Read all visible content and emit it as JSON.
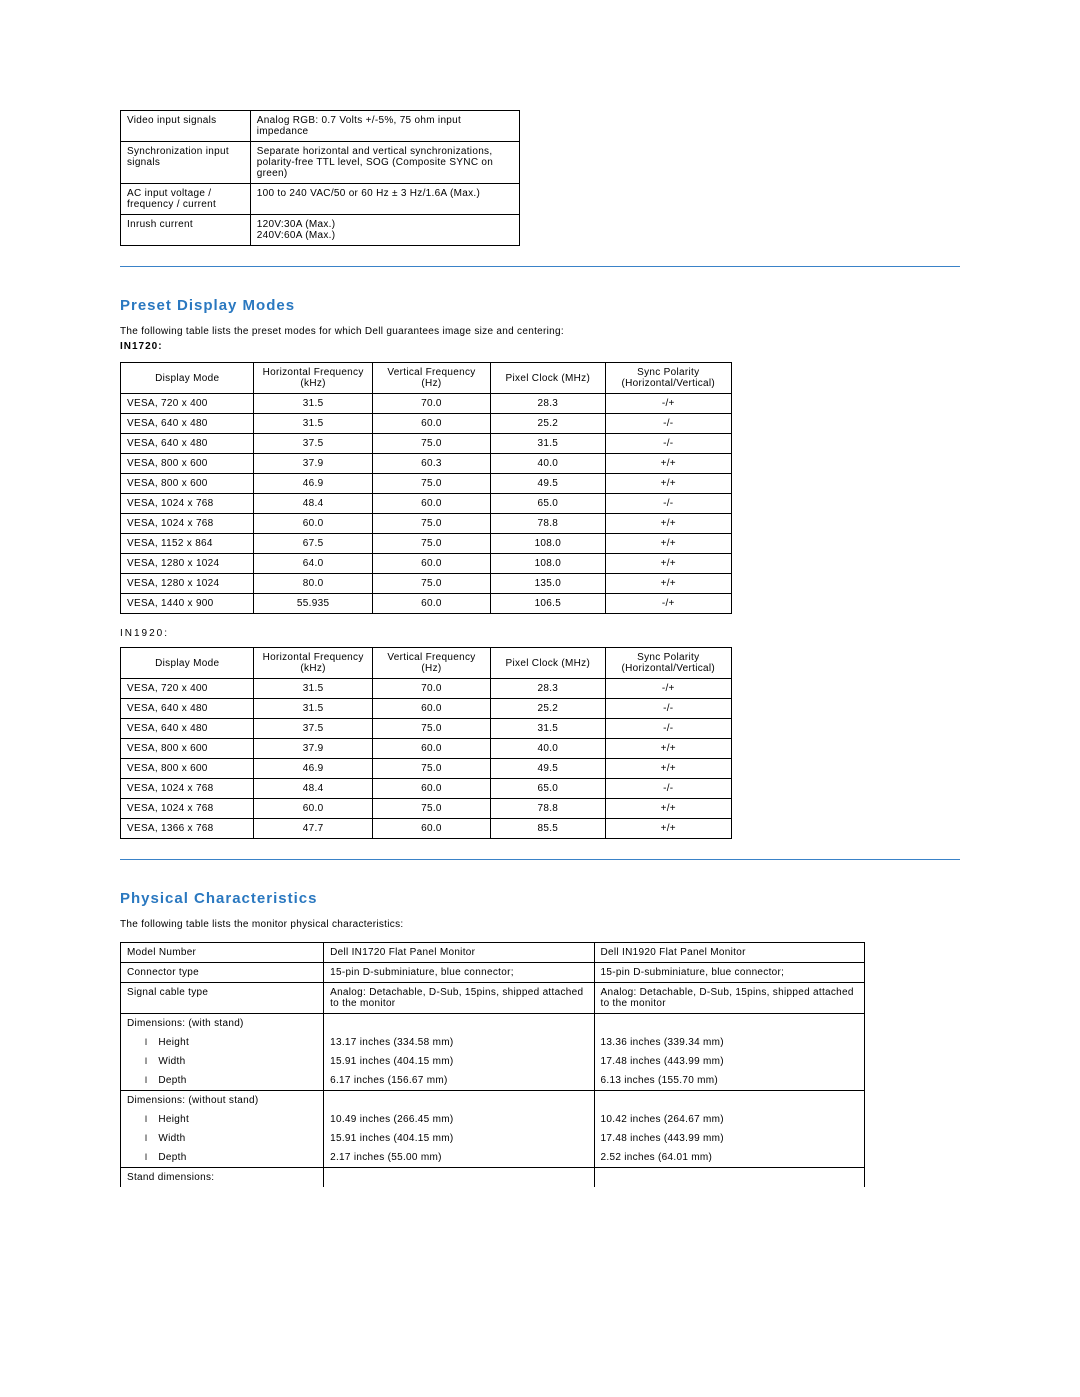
{
  "electrical": {
    "rows": [
      {
        "label": "Video input signals",
        "value": "Analog RGB: 0.7 Volts +/-5%, 75 ohm input impedance"
      },
      {
        "label": "Synchronization input signals",
        "value": "Separate horizontal and vertical synchronizations, polarity-free TTL level, SOG (Composite SYNC on green)"
      },
      {
        "label": "AC input voltage / frequency / current",
        "value": "100 to 240 VAC/50 or 60 Hz ± 3 Hz/1.6A (Max.)"
      },
      {
        "label": "Inrush current",
        "value": "120V:30A (Max.)\n240V:60A (Max.)"
      }
    ]
  },
  "preset": {
    "title": "Preset Display Modes",
    "intro": "The following table lists the preset modes for which Dell guarantees image size and centering:",
    "model1": "IN1720:",
    "model2": "IN1920:",
    "headers": {
      "mode": "Display Mode",
      "hf": "Horizontal Frequency (kHz)",
      "vf": "Vertical Frequency (Hz)",
      "pc": "Pixel Clock (MHz)",
      "sp": "Sync Polarity (Horizontal/Vertical)"
    },
    "in1720": [
      {
        "mode": "VESA, 720 x 400",
        "hf": "31.5",
        "vf": "70.0",
        "pc": "28.3",
        "sp": "-/+"
      },
      {
        "mode": "VESA, 640 x 480",
        "hf": "31.5",
        "vf": "60.0",
        "pc": "25.2",
        "sp": "-/-"
      },
      {
        "mode": "VESA, 640 x 480",
        "hf": "37.5",
        "vf": "75.0",
        "pc": "31.5",
        "sp": "-/-"
      },
      {
        "mode": "VESA, 800 x 600",
        "hf": "37.9",
        "vf": "60.3",
        "pc": "40.0",
        "sp": "+/+"
      },
      {
        "mode": "VESA, 800 x 600",
        "hf": "46.9",
        "vf": "75.0",
        "pc": "49.5",
        "sp": "+/+"
      },
      {
        "mode": "VESA, 1024 x 768",
        "hf": "48.4",
        "vf": "60.0",
        "pc": "65.0",
        "sp": "-/-"
      },
      {
        "mode": "VESA, 1024 x 768",
        "hf": "60.0",
        "vf": "75.0",
        "pc": "78.8",
        "sp": "+/+"
      },
      {
        "mode": "VESA, 1152 x 864",
        "hf": "67.5",
        "vf": "75.0",
        "pc": "108.0",
        "sp": "+/+"
      },
      {
        "mode": "VESA, 1280 x 1024",
        "hf": "64.0",
        "vf": "60.0",
        "pc": "108.0",
        "sp": "+/+"
      },
      {
        "mode": "VESA, 1280 x 1024",
        "hf": "80.0",
        "vf": "75.0",
        "pc": "135.0",
        "sp": "+/+"
      },
      {
        "mode": "VESA, 1440 x 900",
        "hf": "55.935",
        "vf": "60.0",
        "pc": "106.5",
        "sp": "-/+"
      }
    ],
    "in1920": [
      {
        "mode": "VESA, 720 x 400",
        "hf": "31.5",
        "vf": "70.0",
        "pc": "28.3",
        "sp": "-/+"
      },
      {
        "mode": "VESA, 640 x 480",
        "hf": "31.5",
        "vf": "60.0",
        "pc": "25.2",
        "sp": "-/-"
      },
      {
        "mode": "VESA, 640 x 480",
        "hf": "37.5",
        "vf": "75.0",
        "pc": "31.5",
        "sp": "-/-"
      },
      {
        "mode": "VESA, 800 x 600",
        "hf": "37.9",
        "vf": "60.0",
        "pc": "40.0",
        "sp": "+/+"
      },
      {
        "mode": "VESA, 800 x 600",
        "hf": "46.9",
        "vf": "75.0",
        "pc": "49.5",
        "sp": "+/+"
      },
      {
        "mode": "VESA, 1024 x 768",
        "hf": "48.4",
        "vf": "60.0",
        "pc": "65.0",
        "sp": "-/-"
      },
      {
        "mode": "VESA, 1024 x 768",
        "hf": "60.0",
        "vf": "75.0",
        "pc": "78.8",
        "sp": "+/+"
      },
      {
        "mode": "VESA, 1366 x 768",
        "hf": "47.7",
        "vf": "60.0",
        "pc": "85.5",
        "sp": "+/+"
      }
    ]
  },
  "physical": {
    "title": "Physical Characteristics",
    "intro": "The following table lists the monitor physical characteristics:",
    "headers": {
      "model": "Model Number",
      "c1": "Dell IN1720 Flat Panel Monitor",
      "c2": "Dell IN1920 Flat Panel Monitor"
    },
    "rows_top": [
      {
        "label": "Connector type",
        "c1": "15-pin D-subminiature, blue connector;",
        "c2": "15-pin D-subminiature, blue connector;"
      },
      {
        "label": "Signal cable type",
        "c1": "Analog: Detachable, D-Sub, 15pins, shipped attached to the monitor",
        "c2": "Analog: Detachable, D-Sub, 15pins, shipped attached to the monitor"
      }
    ],
    "dim_with_stand_label": "Dimensions: (with stand)",
    "dim_with_stand": [
      {
        "label": "Height",
        "c1": "13.17 inches (334.58 mm)",
        "c2": "13.36 inches (339.34 mm)"
      },
      {
        "label": "Width",
        "c1": "15.91 inches (404.15 mm)",
        "c2": "17.48 inches (443.99 mm)"
      },
      {
        "label": "Depth",
        "c1": "6.17 inches (156.67 mm)",
        "c2": "6.13 inches (155.70 mm)"
      }
    ],
    "dim_without_stand_label": "Dimensions: (without stand)",
    "dim_without_stand": [
      {
        "label": "Height",
        "c1": "10.49 inches (266.45 mm)",
        "c2": "10.42 inches (264.67 mm)"
      },
      {
        "label": "Width",
        "c1": "15.91 inches (404.15 mm)",
        "c2": "17.48 inches (443.99 mm)"
      },
      {
        "label": "Depth",
        "c1": "2.17 inches (55.00 mm)",
        "c2": "2.52 inches (64.01 mm)"
      }
    ],
    "stand_dims_label": "Stand dimensions:"
  }
}
